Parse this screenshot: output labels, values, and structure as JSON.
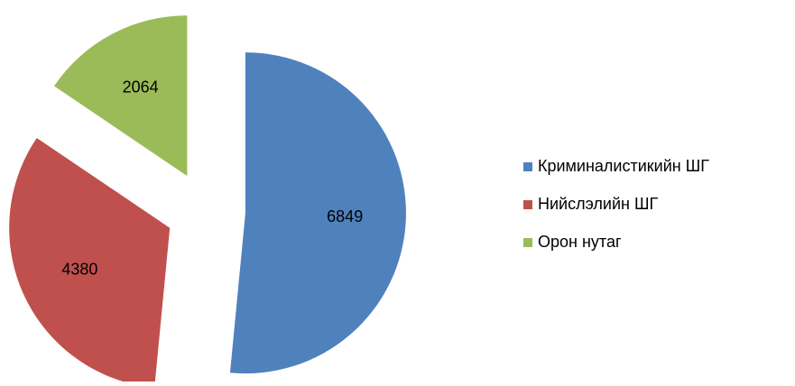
{
  "chart_data": {
    "type": "pie",
    "categories": [
      "Криминалистикийн ШГ",
      "Нийслэлийн ШГ",
      "Орон нутаг"
    ],
    "values": [
      6849,
      4380,
      2064
    ],
    "colors": [
      "#4f81bd",
      "#c0504d",
      "#9bbb59"
    ],
    "exploded": true,
    "legend": "right"
  }
}
